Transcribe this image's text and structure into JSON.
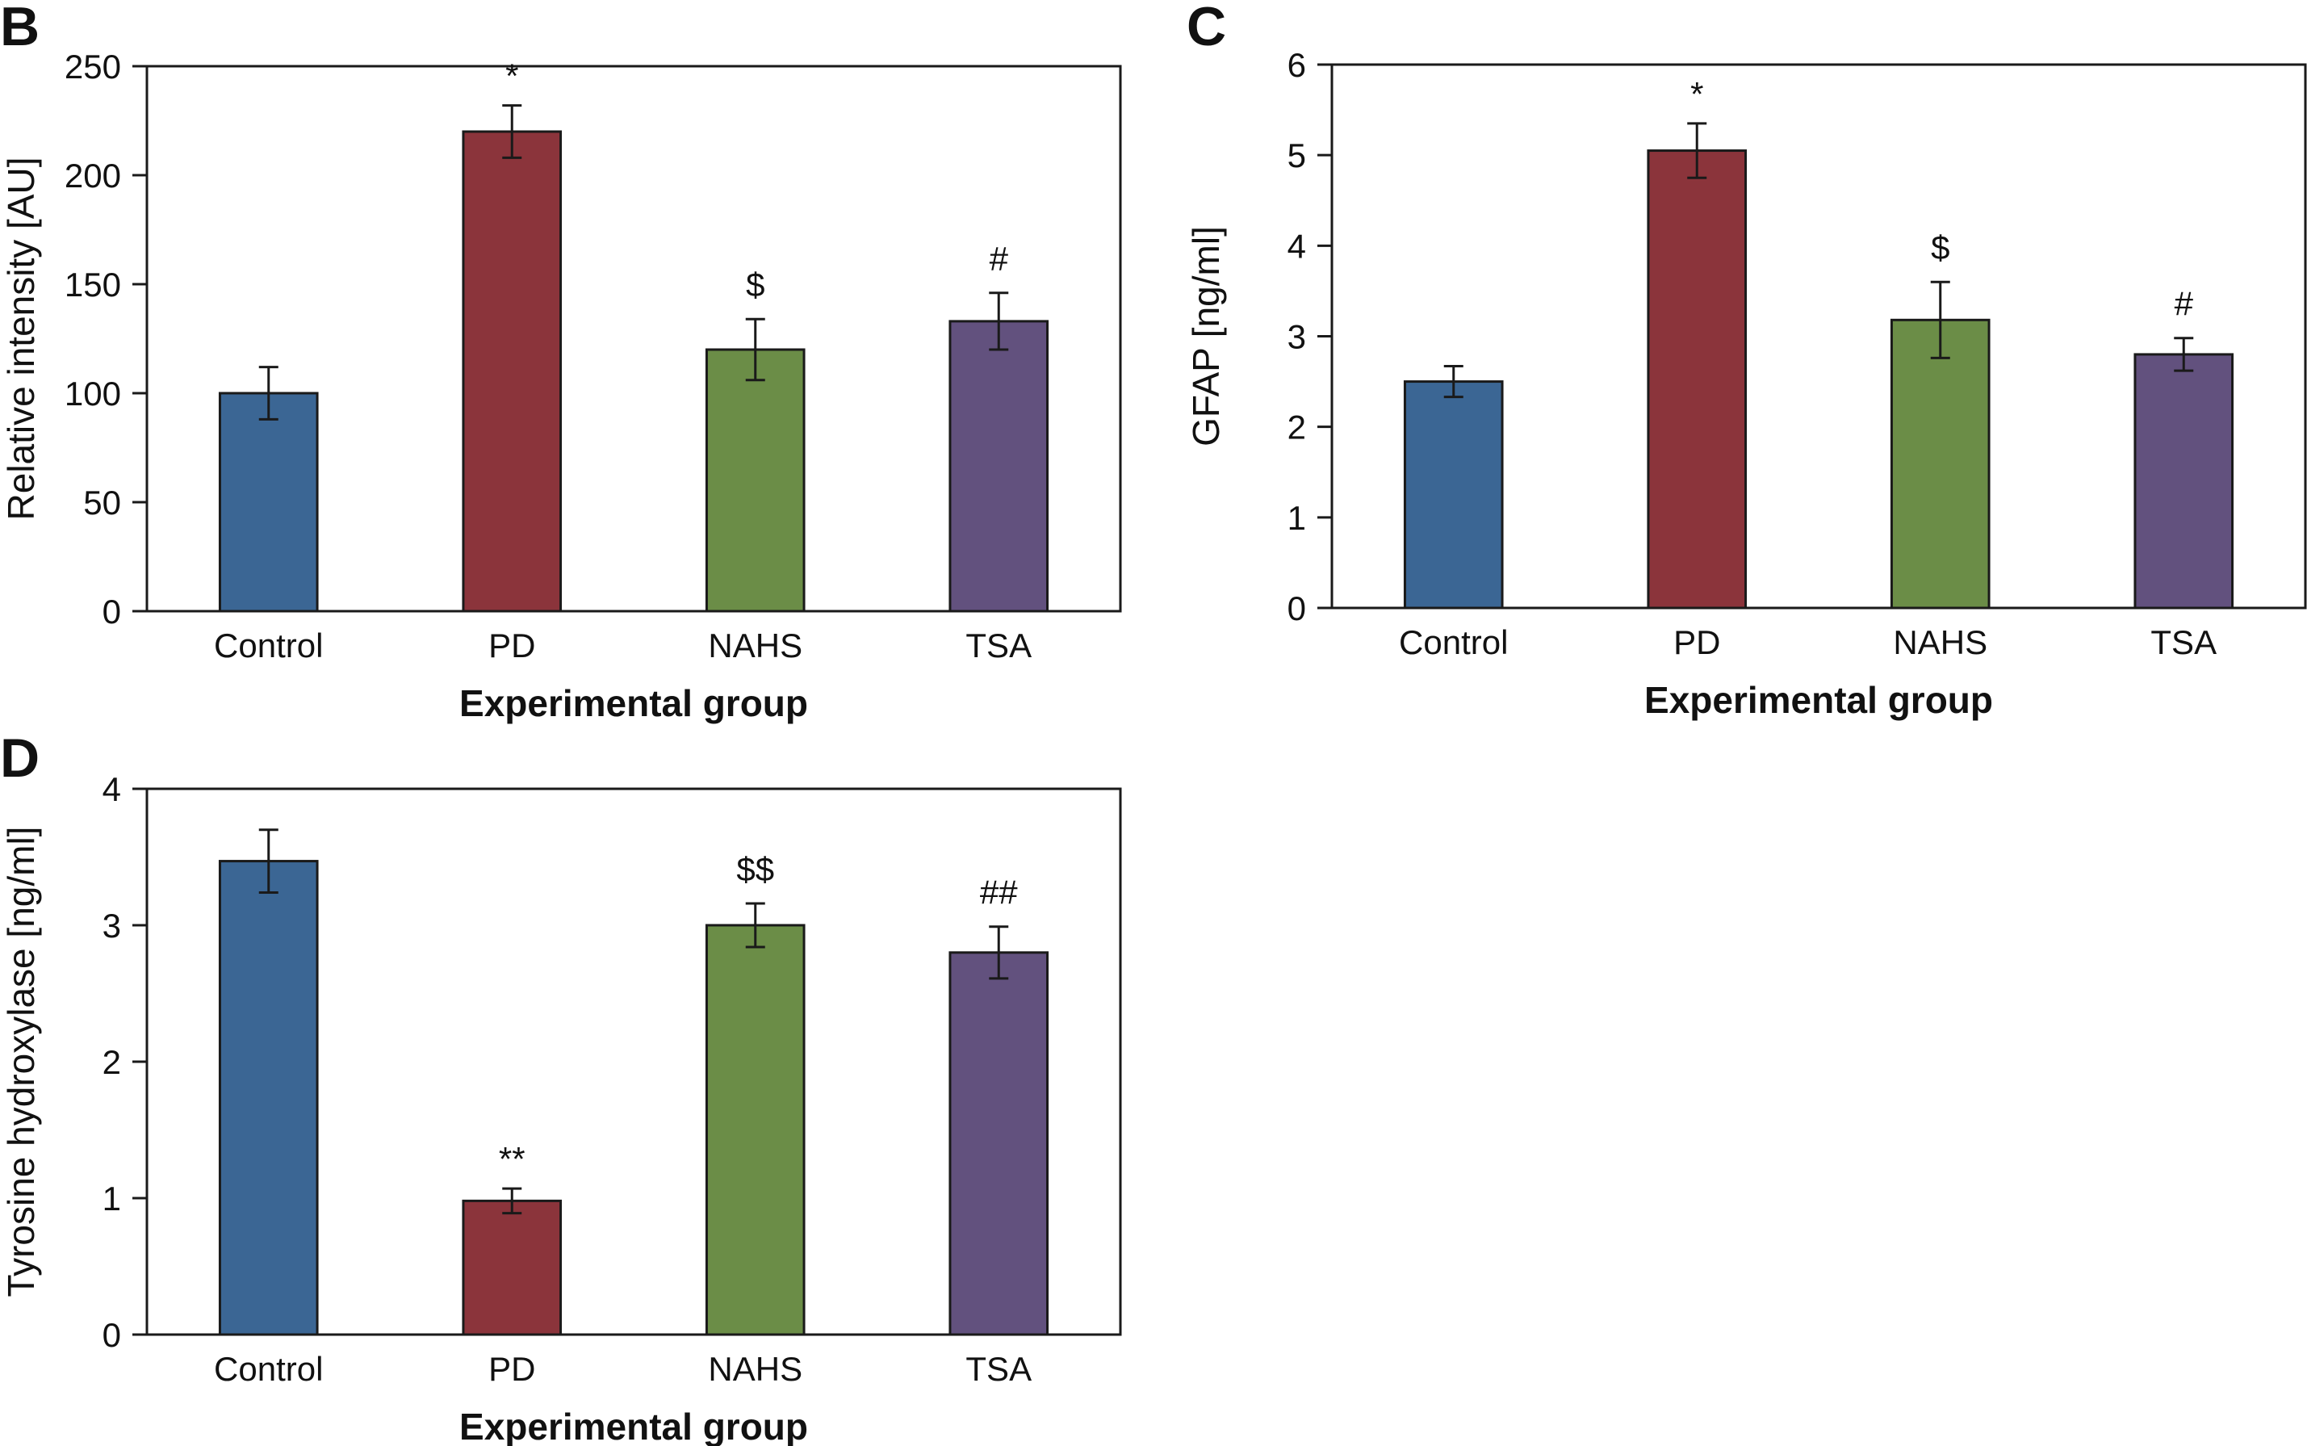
{
  "chart_data": [
    {
      "panel": "B",
      "type": "bar",
      "categories": [
        "Control",
        "PD",
        "NAHS",
        "TSA"
      ],
      "values": [
        100,
        220,
        120,
        133
      ],
      "errors": [
        12,
        12,
        14,
        13
      ],
      "annotations": [
        "",
        "*",
        "$",
        "#"
      ],
      "colors": [
        "#3b6694",
        "#8b343b",
        "#6b8d47",
        "#62517e"
      ],
      "xlabel": "Experimental group",
      "ylabel": "Relative intensity [AU]",
      "ylim": [
        0,
        250
      ],
      "yticks": [
        0,
        50,
        100,
        150,
        200,
        250
      ],
      "grid": false,
      "legend": "none"
    },
    {
      "panel": "C",
      "type": "bar",
      "categories": [
        "Control",
        "PD",
        "NAHS",
        "TSA"
      ],
      "values": [
        2.5,
        5.05,
        3.18,
        2.8
      ],
      "errors": [
        0.17,
        0.3,
        0.42,
        0.18
      ],
      "annotations": [
        "",
        "*",
        "$",
        "#"
      ],
      "colors": [
        "#3b6694",
        "#8b343b",
        "#6b8d47",
        "#62517e"
      ],
      "xlabel": "Experimental group",
      "ylabel": "GFAP [ng/ml]",
      "ylim": [
        0,
        6
      ],
      "yticks": [
        0,
        1,
        2,
        3,
        4,
        5,
        6
      ],
      "grid": false,
      "legend": "none"
    },
    {
      "panel": "D",
      "type": "bar",
      "categories": [
        "Control",
        "PD",
        "NAHS",
        "TSA"
      ],
      "values": [
        3.47,
        0.98,
        3.0,
        2.8
      ],
      "errors": [
        0.23,
        0.09,
        0.16,
        0.19
      ],
      "annotations": [
        "",
        "**",
        "$$",
        "##"
      ],
      "colors": [
        "#3b6694",
        "#8b343b",
        "#6b8d47",
        "#62517e"
      ],
      "xlabel": "Experimental group",
      "ylabel": "Tyrosine hydroxylase [ng/ml]",
      "ylim": [
        0,
        4
      ],
      "yticks": [
        0,
        1,
        2,
        3,
        4
      ],
      "grid": false,
      "legend": "none"
    }
  ]
}
